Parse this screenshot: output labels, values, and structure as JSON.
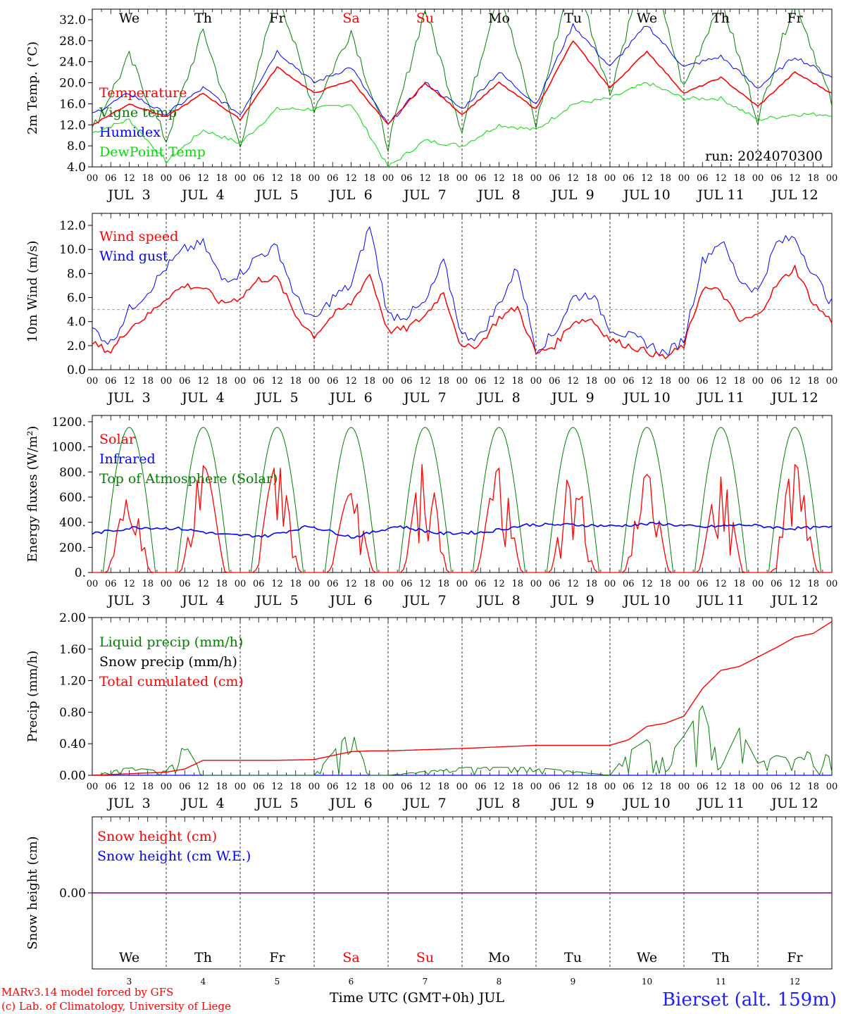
{
  "footer": {
    "model": "MARv3.14 model forced by GFS",
    "credit": "(c) Lab. of Climatology, University of Liege",
    "xlabel": "Time UTC (GMT+0h) JUL",
    "station": "Bierset (alt. 159m)"
  },
  "timeline": {
    "hour_labels": [
      "00",
      "06",
      "12",
      "18"
    ],
    "end_label": "00",
    "date_labels": [
      "JUL  3",
      "JUL  4",
      "JUL  5",
      "JUL  6",
      "JUL  7",
      "JUL  8",
      "JUL  9",
      "JUL 10",
      "JUL 11",
      "JUL 12"
    ],
    "day_numbers": [
      "3",
      "4",
      "5",
      "6",
      "7",
      "8",
      "9",
      "10",
      "11",
      "12"
    ],
    "weekdays": [
      "We",
      "Th",
      "Fr",
      "Sa",
      "Su",
      "Mo",
      "Tu",
      "We",
      "Th",
      "Fr"
    ],
    "weekend_days": [
      3,
      4
    ]
  },
  "colors": {
    "red": "#ff0000",
    "green": "#008000",
    "blue": "#0000ff",
    "lightgreen": "#00dd00",
    "purple": "#7f007f",
    "station": "#2020ff"
  },
  "chart_data": [
    {
      "type": "line",
      "ylabel": "2m Temp. (°C)",
      "ylim": [
        4,
        34
      ],
      "yticks": [
        "4.0",
        "8.0",
        "12.0",
        "16.0",
        "20.0",
        "24.0",
        "28.0",
        "32.0"
      ],
      "annotation": "run: 2024070300",
      "legend": [
        "Temperature",
        "Vigne temp",
        "Humidex",
        "DewPoint Temp"
      ],
      "x_hours": [
        0,
        12,
        24,
        36,
        48,
        60,
        72,
        84,
        96,
        108,
        120,
        132,
        144,
        156,
        168,
        180,
        192,
        204,
        216,
        228,
        240
      ],
      "series": [
        {
          "name": "Temperature",
          "color": "red",
          "values": [
            12,
            16,
            13.5,
            18,
            13,
            23,
            18,
            20.5,
            12,
            20,
            14,
            20,
            15,
            28,
            19,
            26,
            18,
            21,
            15.5,
            22,
            18
          ]
        },
        {
          "name": "Vigne temp",
          "color": "green",
          "values": [
            11,
            25,
            9,
            30,
            8,
            38,
            15,
            30,
            8,
            34,
            11,
            38,
            12,
            42,
            18,
            44,
            19,
            36,
            13,
            36,
            16
          ]
        },
        {
          "name": "Humidex",
          "color": "blue",
          "values": [
            14,
            18,
            14,
            19,
            14,
            26,
            20,
            23,
            12,
            20,
            15,
            22,
            16,
            31,
            23,
            31,
            23,
            25,
            19,
            25,
            21
          ]
        },
        {
          "name": "DewPoint Temp",
          "color": "lightgreen",
          "values": [
            10.5,
            13,
            5,
            11,
            8.5,
            15,
            15,
            16,
            4,
            9,
            8,
            12,
            11,
            16,
            17,
            20,
            17,
            17,
            13,
            14,
            14
          ]
        }
      ]
    },
    {
      "type": "line",
      "ylabel": "10m Wind (m/s)",
      "ylim": [
        0,
        13
      ],
      "yticks": [
        "0.0",
        "2.0",
        "4.0",
        "6.0",
        "8.0",
        "10.0",
        "12.0"
      ],
      "reference_line": 5,
      "legend": [
        "Wind speed",
        "Wind gust"
      ],
      "x_hours": [
        0,
        6,
        12,
        18,
        24,
        30,
        36,
        42,
        48,
        54,
        60,
        66,
        72,
        78,
        84,
        90,
        96,
        102,
        108,
        114,
        120,
        126,
        132,
        138,
        144,
        150,
        156,
        162,
        168,
        174,
        180,
        186,
        192,
        198,
        204,
        210,
        216,
        222,
        228,
        234,
        240
      ],
      "series": [
        {
          "name": "Wind speed",
          "color": "red",
          "values": [
            2.2,
            1.5,
            3.5,
            4.5,
            6,
            7,
            6.8,
            5.5,
            6,
            7.5,
            7.6,
            4.5,
            2.8,
            4.5,
            5.5,
            8,
            3.2,
            3.4,
            4.5,
            6.5,
            1.7,
            2.2,
            4.3,
            5.2,
            1.3,
            2,
            4,
            4.2,
            2.5,
            2,
            1.5,
            1,
            2,
            6.8,
            6.5,
            4,
            4.5,
            7,
            8.5,
            5.5,
            4
          ]
        },
        {
          "name": "Wind gust",
          "color": "blue",
          "values": [
            3.4,
            2.2,
            5,
            6.5,
            8.5,
            10,
            10.5,
            7.5,
            8,
            9.5,
            10.2,
            6,
            4,
            6,
            7,
            12,
            4.5,
            4.5,
            5.5,
            9,
            2.8,
            2.8,
            5.5,
            8.5,
            1.7,
            3,
            6,
            6.3,
            3.5,
            2.8,
            2.2,
            1.3,
            2.5,
            9,
            10.8,
            7.5,
            6.5,
            10.5,
            11,
            8,
            5.5
          ]
        }
      ]
    },
    {
      "type": "line",
      "ylabel": "Energy fluxes (W/m²)",
      "ylim": [
        0,
        1250
      ],
      "yticks": [
        "0.",
        "200.",
        "400.",
        "600.",
        "800.",
        "1000.",
        "1200."
      ],
      "legend": [
        "Solar",
        "Infrared",
        "Top of Atmosphere (Solar)"
      ],
      "series": [
        {
          "name": "Top of Atmosphere (Solar)",
          "color": "green",
          "daily_max": 1155,
          "sunrise_hour": 3.5,
          "sunset_hour": 20.5
        },
        {
          "name": "Solar",
          "color": "red",
          "daily_max": [
            600,
            850,
            860,
            630,
            890,
            830,
            850,
            780,
            760,
            860
          ]
        },
        {
          "name": "Infrared",
          "color": "blue",
          "values": [
            310,
            360,
            350,
            300,
            290,
            370,
            280,
            370,
            310,
            320,
            380,
            380,
            370,
            390,
            360,
            380,
            350,
            360
          ]
        }
      ]
    },
    {
      "type": "line",
      "ylabel": "Precip (mm/h)",
      "ylim": [
        0,
        2
      ],
      "yticks": [
        "0.00",
        "0.40",
        "0.80",
        "1.20",
        "1.60",
        "2.00"
      ],
      "legend": [
        "Liquid precip (mm/h)",
        "Snow precip (mm/h)",
        "Total cumulated (cm)"
      ],
      "x_hours": [
        0,
        12,
        24,
        30,
        36,
        60,
        72,
        84,
        90,
        96,
        120,
        144,
        168,
        174,
        180,
        186,
        192,
        198,
        204,
        210,
        216,
        222,
        228,
        234,
        240
      ],
      "series": [
        {
          "name": "Total cumulated (cm)",
          "color": "red",
          "values": [
            0,
            0.02,
            0.04,
            0.08,
            0.19,
            0.19,
            0.2,
            0.3,
            0.31,
            0.31,
            0.34,
            0.38,
            0.38,
            0.45,
            0.62,
            0.66,
            0.75,
            1.1,
            1.33,
            1.38,
            1.5,
            1.62,
            1.75,
            1.8,
            1.95
          ]
        },
        {
          "name": "Liquid precip (mm/h)",
          "color": "green",
          "values": [
            0,
            0.1,
            0.05,
            0.4,
            0,
            0,
            0,
            0.58,
            0,
            0,
            0.1,
            0.1,
            0,
            0.3,
            0.45,
            0.2,
            0.5,
            0.88,
            0.1,
            0.6,
            0.15,
            0.25,
            0.2,
            0.35,
            0.22
          ]
        }
      ]
    },
    {
      "type": "line",
      "ylabel": "Snow height (cm)",
      "yticks": [
        "0.00"
      ],
      "legend": [
        "Snow height (cm)",
        "Snow height (cm W.E.)"
      ],
      "series": [
        {
          "name": "Snow height (cm)",
          "color": "red",
          "values": [
            0,
            0
          ]
        },
        {
          "name": "Snow height (cm W.E.)",
          "color": "blue",
          "values": [
            0,
            0
          ]
        }
      ]
    }
  ]
}
